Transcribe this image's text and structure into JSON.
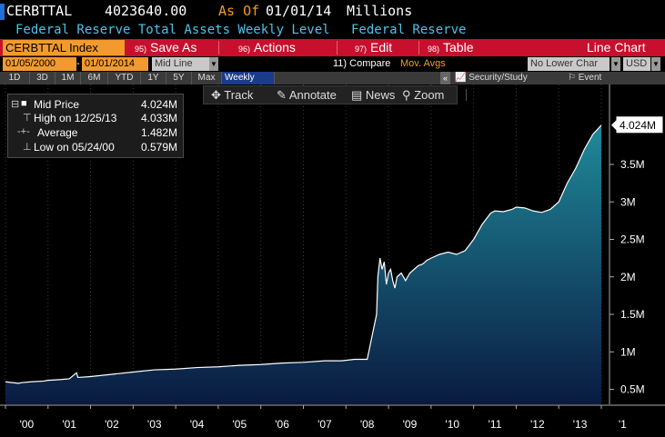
{
  "header": {
    "ticker": "CERBTTAL",
    "price": "4023640.00",
    "as_of_label": "As Of",
    "as_of_date": "01/01/14",
    "units": "Millions",
    "description": "Federal Reserve Total Assets Weekly Level",
    "source": "Federal Reserve"
  },
  "menu": {
    "security": "CERBTTAL Index",
    "save": {
      "num": "95)",
      "label": "Save As"
    },
    "actions": {
      "num": "96)",
      "label": "Actions"
    },
    "edit": {
      "num": "97)",
      "label": "Edit"
    },
    "table": {
      "num": "98)",
      "label": "Table"
    },
    "chart_type": "Line Chart"
  },
  "controls": {
    "start_date": "01/05/2000",
    "end_date": "01/01/2014",
    "price_type": "Mid Line",
    "compare_num": "11)",
    "compare_label": "Compare",
    "mov_avgs": "Mov. Avgs",
    "lower_chart": "No Lower Char",
    "currency": "USD",
    "dropdown_glyph": "▼"
  },
  "periods": {
    "items": [
      "1D",
      "3D",
      "1M",
      "6M",
      "YTD",
      "1Y",
      "5Y",
      "Max"
    ],
    "selected": "Weekly",
    "collapse_glyph": "«",
    "security_study": "Security/Study",
    "event": "Event"
  },
  "toolbar": {
    "track": "Track",
    "annotate": "Annotate",
    "news": "News",
    "zoom": "Zoom"
  },
  "legend": {
    "rows": [
      {
        "marker": "■",
        "label": "Mid Price",
        "value": "4.024M"
      },
      {
        "marker": "⊤",
        "label": "High on 12/25/13",
        "value": "4.033M"
      },
      {
        "marker": "-+-",
        "label": "Average",
        "value": "1.482M"
      },
      {
        "marker": "⊥",
        "label": "Low on 05/24/00",
        "value": "0.579M"
      }
    ],
    "collapse_glyph": "⊟"
  },
  "colors": {
    "accent_orange": "#f29a2e",
    "menu_red": "#c8102e",
    "description_cyan": "#4fc2e8",
    "area_top": "#1f8a9a",
    "area_bottom": "#0a1a40",
    "line": "#ffffff"
  },
  "chart_data": {
    "type": "area",
    "title": "",
    "xlabel": "",
    "ylabel": "",
    "x_tick_labels": [
      "'00",
      "'01",
      "'02",
      "'03",
      "'04",
      "'05",
      "'06",
      "'07",
      "'08",
      "'09",
      "'10",
      "'11",
      "'12",
      "'13",
      "'1"
    ],
    "y_tick_labels": [
      "0.5M",
      "1M",
      "1.5M",
      "2M",
      "2.5M",
      "3M",
      "3.5M"
    ],
    "y_tick_values": [
      0.5,
      1.0,
      1.5,
      2.0,
      2.5,
      3.0,
      3.5
    ],
    "ylim": [
      0.3,
      4.3
    ],
    "xlim": [
      2000.0,
      2014.15
    ],
    "last_value_label": "4.024M",
    "last_value": 4.024,
    "grid": "vertical-dotted",
    "series": [
      {
        "x": [
          2000.0,
          2000.3,
          2000.4,
          2000.6,
          2000.9,
          2001.0,
          2001.3,
          2001.5,
          2001.67,
          2001.7,
          2001.75,
          2002.0,
          2002.5,
          2003.0,
          2003.5,
          2004.0,
          2004.5,
          2005.0,
          2005.5,
          2006.0,
          2006.5,
          2007.0,
          2007.5,
          2007.9,
          2008.2,
          2008.5,
          2008.72,
          2008.75,
          2008.8,
          2008.85,
          2008.9,
          2008.95,
          2009.0,
          2009.05,
          2009.1,
          2009.15,
          2009.2,
          2009.3,
          2009.4,
          2009.5,
          2009.6,
          2009.7,
          2009.8,
          2009.9,
          2010.0,
          2010.2,
          2010.4,
          2010.6,
          2010.8,
          2011.0,
          2011.2,
          2011.4,
          2011.5,
          2011.7,
          2011.9,
          2012.0,
          2012.2,
          2012.4,
          2012.6,
          2012.8,
          2013.0,
          2013.2,
          2013.4,
          2013.6,
          2013.8,
          2014.0
        ],
        "y": [
          0.6,
          0.58,
          0.59,
          0.6,
          0.61,
          0.62,
          0.63,
          0.64,
          0.72,
          0.66,
          0.66,
          0.67,
          0.7,
          0.73,
          0.76,
          0.77,
          0.79,
          0.8,
          0.82,
          0.83,
          0.85,
          0.86,
          0.88,
          0.88,
          0.9,
          0.9,
          1.5,
          2.0,
          2.25,
          2.1,
          2.2,
          1.9,
          2.05,
          2.1,
          1.95,
          1.85,
          2.0,
          2.05,
          1.95,
          2.05,
          2.1,
          2.15,
          2.17,
          2.22,
          2.25,
          2.3,
          2.33,
          2.3,
          2.35,
          2.5,
          2.7,
          2.85,
          2.88,
          2.87,
          2.9,
          2.93,
          2.92,
          2.88,
          2.86,
          2.9,
          3.0,
          3.25,
          3.45,
          3.7,
          3.9,
          4.024
        ]
      }
    ]
  }
}
